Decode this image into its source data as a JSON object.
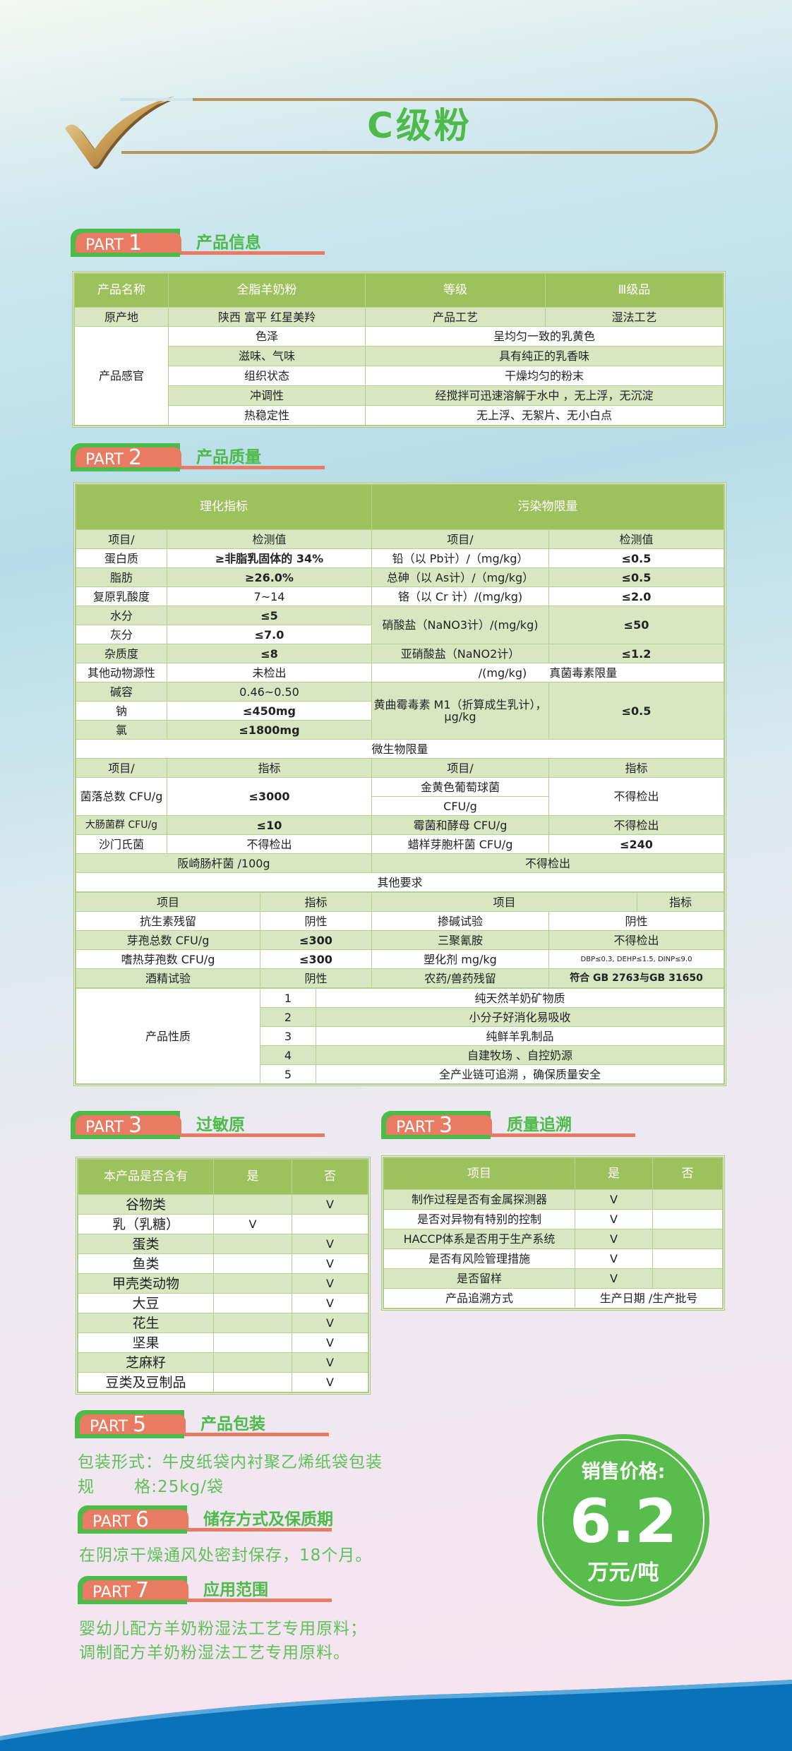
{
  "title": "C级粉",
  "colors": {
    "green": "#4cbb4a",
    "salmon": "#e87b62",
    "header_green": "#9dc15c",
    "light_row": "#d8e7c1",
    "gold": "#b5945a",
    "wave_blue": "#0a72b8"
  },
  "parts": {
    "p1": {
      "label": "PART",
      "num": "1",
      "title": "产品信息"
    },
    "p2": {
      "label": "PART",
      "num": "2",
      "title": "产品质量"
    },
    "p3a": {
      "label": "PART",
      "num": "3",
      "title": "过敏原"
    },
    "p3b": {
      "label": "PART",
      "num": "3",
      "title": "质量追溯"
    },
    "p5": {
      "label": "PART",
      "num": "5",
      "title": "产品包装"
    },
    "p6": {
      "label": "PART",
      "num": "6",
      "title": "储存方式及保质期"
    },
    "p7": {
      "label": "PART",
      "num": "7",
      "title": "应用范围"
    }
  },
  "info": {
    "header": [
      "产品名称",
      "全脂羊奶粉",
      "等级",
      "Ⅲ级品"
    ],
    "origin": [
      "原产地",
      "陕西  富平  红星美羚",
      "产品工艺",
      "湿法工艺"
    ],
    "sensory_label": "产品感官",
    "sensory": [
      [
        "色泽",
        "呈均匀一致的乳黄色"
      ],
      [
        "滋味、气味",
        "具有纯正的乳香味"
      ],
      [
        "组织状态",
        "干燥均匀的粉末"
      ],
      [
        "冲调性",
        "经搅拌可迅速溶解于水中 ，无上浮，无沉淀"
      ],
      [
        "热稳定性",
        "无上浮、无絮片、无小白点"
      ]
    ]
  },
  "quality": {
    "head_left": "理化指标",
    "head_right": "污染物限量",
    "col_heads": [
      "项目/",
      "检测值",
      "项目/",
      "检测值"
    ],
    "physchem": [
      [
        "蛋白质",
        "≥非脂乳固体的 34%"
      ],
      [
        "脂肪",
        "≥26.0%"
      ],
      [
        "复原乳酸度",
        "7~14"
      ],
      [
        "水分",
        "≤5"
      ],
      [
        "灰分",
        "≤7.0"
      ],
      [
        "杂质度",
        "≤8"
      ],
      [
        "其他动物源性",
        "未检出"
      ],
      [
        "碱容",
        "0.46~0.50"
      ],
      [
        "钠",
        "≤450mg"
      ],
      [
        "氯",
        "≤1800mg"
      ]
    ],
    "contaminants": [
      [
        "铅（以 Pb计）/（mg/kg）",
        "≤0.5"
      ],
      [
        "总砷（以 As计）/（mg/kg）",
        "≤0.5"
      ],
      [
        "铬（以 Cr 计）/(mg/kg)",
        "≤2.0"
      ],
      [
        "硝酸盐（NaNO3计）/(mg/kg)",
        "≤50"
      ],
      [
        "亚硝酸盐（NaNO2计）",
        "≤1.2"
      ]
    ],
    "mycotoxin_head": "/(mg/kg)　　真菌毒素限量",
    "mycotoxin": [
      "黄曲霉毒素 M1（折算成生乳计），μg/kg",
      "≤0.5"
    ],
    "micro_head": "微生物限量",
    "micro_cols": [
      "项目/",
      "指标",
      "项目/",
      "指标"
    ],
    "micro_total": [
      "菌落总数 CFU/g",
      "≤3000"
    ],
    "micro_staph": [
      "金黄色葡萄球菌",
      "CFU/g",
      "不得检出"
    ],
    "micro_rows": [
      [
        "大肠菌群 CFU/g",
        "≤10",
        "霉菌和酵母 CFU/g",
        "不得检出"
      ],
      [
        "沙门氏菌",
        "不得检出",
        "蜡样芽胞杆菌 CFU/g",
        "≤240"
      ]
    ],
    "micro_sakazakii": [
      "阪崎肠杆菌 /100g",
      "不得检出"
    ],
    "other_head": "其他要求",
    "other_cols": [
      "项目",
      "指标",
      "项目",
      "指标"
    ],
    "other": [
      [
        "抗生素残留",
        "阴性",
        "掺碱试验",
        "阴性"
      ],
      [
        "芽孢总数 CFU/g",
        "≤300",
        "三聚氰胺",
        "不得检出"
      ],
      [
        "嗜热芽孢数 CFU/g",
        "≤300",
        "塑化剂 mg/kg",
        "DBP≤0.3, DEHP≤1.5, DINP≤9.0"
      ],
      [
        "酒精试验",
        "阴性",
        "农药/兽药残留",
        "符合 GB 2763与GB 31650"
      ]
    ],
    "props_label": "产品性质",
    "props": [
      [
        "1",
        "纯天然羊奶矿物质"
      ],
      [
        "2",
        "小分子好消化易吸收"
      ],
      [
        "3",
        "纯鲜羊乳制品"
      ],
      [
        "4",
        "自建牧场 、自控奶源"
      ],
      [
        "5",
        "全产业链可追溯 ，确保质量安全"
      ]
    ]
  },
  "allergen": {
    "cols": [
      "本产品是否含有",
      "是",
      "否"
    ],
    "rows": [
      [
        "谷物类",
        "",
        "V"
      ],
      [
        "乳（乳糖）",
        "V",
        ""
      ],
      [
        "蛋类",
        "",
        "V"
      ],
      [
        "鱼类",
        "",
        "V"
      ],
      [
        "甲壳类动物",
        "",
        "V"
      ],
      [
        "大豆",
        "",
        "V"
      ],
      [
        "花生",
        "",
        "V"
      ],
      [
        "坚果",
        "",
        "V"
      ],
      [
        "芝麻籽",
        "",
        "V"
      ],
      [
        "豆类及豆制品",
        "",
        "V"
      ]
    ]
  },
  "trace": {
    "cols": [
      "项目",
      "是",
      "否"
    ],
    "rows": [
      [
        "制作过程是否有金属探测器",
        "V",
        ""
      ],
      [
        "是否对异物有特别的控制",
        "V",
        ""
      ],
      [
        "HACCP体系是否用于生产系统",
        "V",
        ""
      ],
      [
        "是否有风险管理措施",
        "V",
        ""
      ],
      [
        "是否留样",
        "V",
        ""
      ]
    ],
    "method": [
      "产品追溯方式",
      "生产日期 /生产批号"
    ]
  },
  "packaging": [
    "包装形式：牛皮纸袋内衬聚乙烯纸袋包装",
    "规　　 格:25kg/袋"
  ],
  "storage": "在阴凉干燥通风处密封保存，18个月。",
  "application": [
    "婴幼儿配方羊奶粉湿法工艺专用原料；",
    "调制配方羊奶粉湿法工艺专用原料。"
  ],
  "price": {
    "label": "销售价格:",
    "value": "6.2",
    "unit": "万元/吨"
  }
}
